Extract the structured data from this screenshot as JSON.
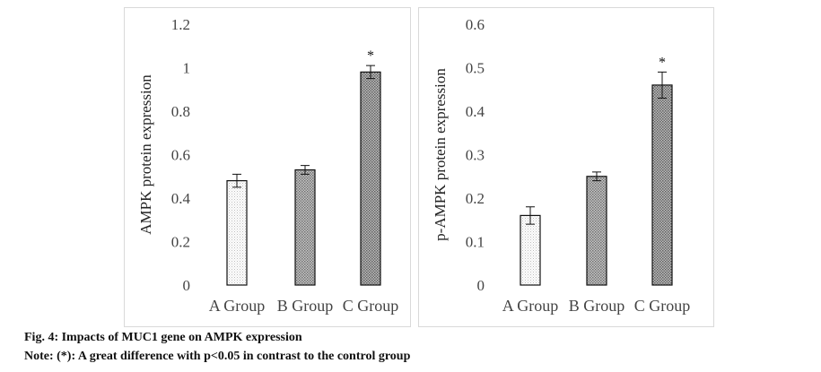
{
  "chart_data": [
    {
      "type": "bar",
      "categories": [
        "A Group",
        "B Group",
        "C Group"
      ],
      "values": [
        0.48,
        0.53,
        0.98
      ],
      "errors": [
        0.03,
        0.02,
        0.03
      ],
      "significance": [
        "",
        "",
        "*"
      ],
      "ylabel": "AMPK protein expression",
      "ylim": [
        0,
        1.2
      ],
      "ytick_labels": [
        "0",
        "0.2",
        "0.4",
        "0.6",
        "0.8",
        "1",
        "1.2"
      ],
      "grid": false
    },
    {
      "type": "bar",
      "categories": [
        "A Group",
        "B Group",
        "C Group"
      ],
      "values": [
        0.16,
        0.25,
        0.46
      ],
      "errors": [
        0.02,
        0.01,
        0.03
      ],
      "significance": [
        "",
        "",
        "*"
      ],
      "ylabel": "p-AMPK protein expression",
      "ylim": [
        0,
        0.6
      ],
      "ytick_labels": [
        "0",
        "0.1",
        "0.2",
        "0.3",
        "0.4",
        "0.5",
        "0.6"
      ],
      "grid": false
    }
  ],
  "caption": {
    "figure": "Fig. 4: Impacts of MUC1 gene on AMPK expression",
    "note": "Note: (*): A great difference with p<0.05 in contrast to the control group"
  },
  "colors": {
    "bar_outline": "#111111",
    "pattern_a": "#d9d9d9",
    "pattern_b": "#8c8c8c",
    "pattern_c": "#7a7a7a",
    "axis_text": "#444444",
    "panel_border": "#d9d9d9"
  }
}
